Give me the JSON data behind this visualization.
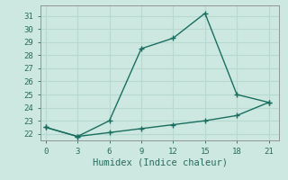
{
  "title": "",
  "xlabel": "Humidex (Indice chaleur)",
  "background_color": "#cce8e0",
  "grid_color": "#b8d8d0",
  "line_color": "#1a6e60",
  "x_upper": [
    0,
    3,
    6,
    9,
    12,
    15,
    18,
    21
  ],
  "y_upper": [
    22.5,
    21.8,
    23.0,
    28.5,
    29.3,
    31.2,
    25.0,
    24.4
  ],
  "x_lower": [
    0,
    3,
    6,
    9,
    12,
    15,
    18,
    21
  ],
  "y_lower": [
    22.5,
    21.8,
    22.1,
    22.4,
    22.7,
    23.0,
    23.4,
    24.4
  ],
  "xlim": [
    -0.5,
    22
  ],
  "ylim": [
    21.5,
    31.8
  ],
  "xticks": [
    0,
    3,
    6,
    9,
    12,
    15,
    18,
    21
  ],
  "yticks": [
    22,
    23,
    24,
    25,
    26,
    27,
    28,
    29,
    30,
    31
  ],
  "marker": "+",
  "markersize": 5,
  "linewidth": 1.0,
  "tick_color": "#2a6a5a",
  "label_color": "#2a6a5a",
  "tick_fontsize": 6.5,
  "xlabel_fontsize": 7.5
}
